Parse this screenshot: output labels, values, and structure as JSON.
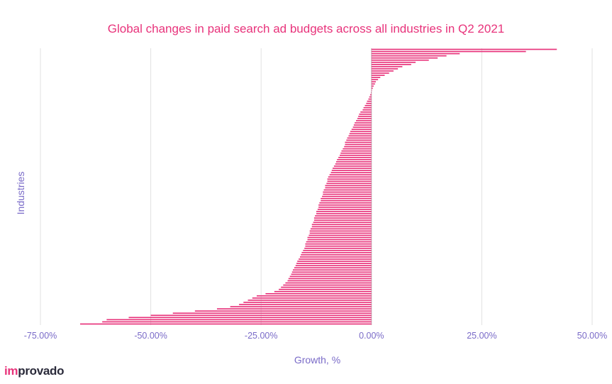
{
  "logo": {
    "prefix": "im",
    "suffix": "provado"
  },
  "colors": {
    "bar": "#e8337b",
    "text": "#7a6bc8",
    "grid": "#e0e0e0"
  },
  "chart_data": {
    "type": "bar",
    "orientation": "horizontal",
    "title": "Global changes in paid search ad budgets across all industries in Q2 2021",
    "xlabel": "Growth, %",
    "ylabel": "Industries",
    "xlim": [
      -0.75,
      0.5
    ],
    "xticks": [
      -0.75,
      -0.5,
      -0.25,
      0,
      0.25,
      0.5
    ],
    "xtick_labels": [
      "-75.00%",
      "-50.00%",
      "-25.00%",
      "0.00%",
      "25.00%",
      "50.00%"
    ],
    "grid": true,
    "legend": "none",
    "series": [
      {
        "values": [
          0.42,
          0.35,
          0.2,
          0.17,
          0.15,
          0.13,
          0.1,
          0.09,
          0.07,
          0.06,
          0.05,
          0.04,
          0.03,
          0.02,
          0.015,
          0.01,
          0.008,
          0.005,
          0.003,
          0.001,
          -0.001,
          -0.003,
          -0.005,
          -0.007,
          -0.01,
          -0.012,
          -0.015,
          -0.018,
          -0.02,
          -0.025,
          -0.028,
          -0.03,
          -0.032,
          -0.035,
          -0.038,
          -0.04,
          -0.042,
          -0.045,
          -0.048,
          -0.05,
          -0.052,
          -0.055,
          -0.057,
          -0.06,
          -0.06,
          -0.062,
          -0.065,
          -0.068,
          -0.07,
          -0.072,
          -0.075,
          -0.078,
          -0.08,
          -0.082,
          -0.085,
          -0.088,
          -0.09,
          -0.092,
          -0.095,
          -0.098,
          -0.1,
          -0.1,
          -0.102,
          -0.105,
          -0.105,
          -0.108,
          -0.11,
          -0.11,
          -0.112,
          -0.115,
          -0.115,
          -0.118,
          -0.12,
          -0.12,
          -0.122,
          -0.125,
          -0.125,
          -0.128,
          -0.13,
          -0.13,
          -0.132,
          -0.135,
          -0.135,
          -0.138,
          -0.14,
          -0.14,
          -0.142,
          -0.145,
          -0.145,
          -0.148,
          -0.15,
          -0.15,
          -0.152,
          -0.155,
          -0.158,
          -0.16,
          -0.162,
          -0.165,
          -0.168,
          -0.17,
          -0.172,
          -0.175,
          -0.178,
          -0.18,
          -0.182,
          -0.185,
          -0.188,
          -0.19,
          -0.195,
          -0.2,
          -0.205,
          -0.21,
          -0.22,
          -0.24,
          -0.26,
          -0.27,
          -0.28,
          -0.29,
          -0.3,
          -0.32,
          -0.35,
          -0.4,
          -0.45,
          -0.5,
          -0.55,
          -0.6,
          -0.61,
          -0.66
        ]
      }
    ]
  }
}
